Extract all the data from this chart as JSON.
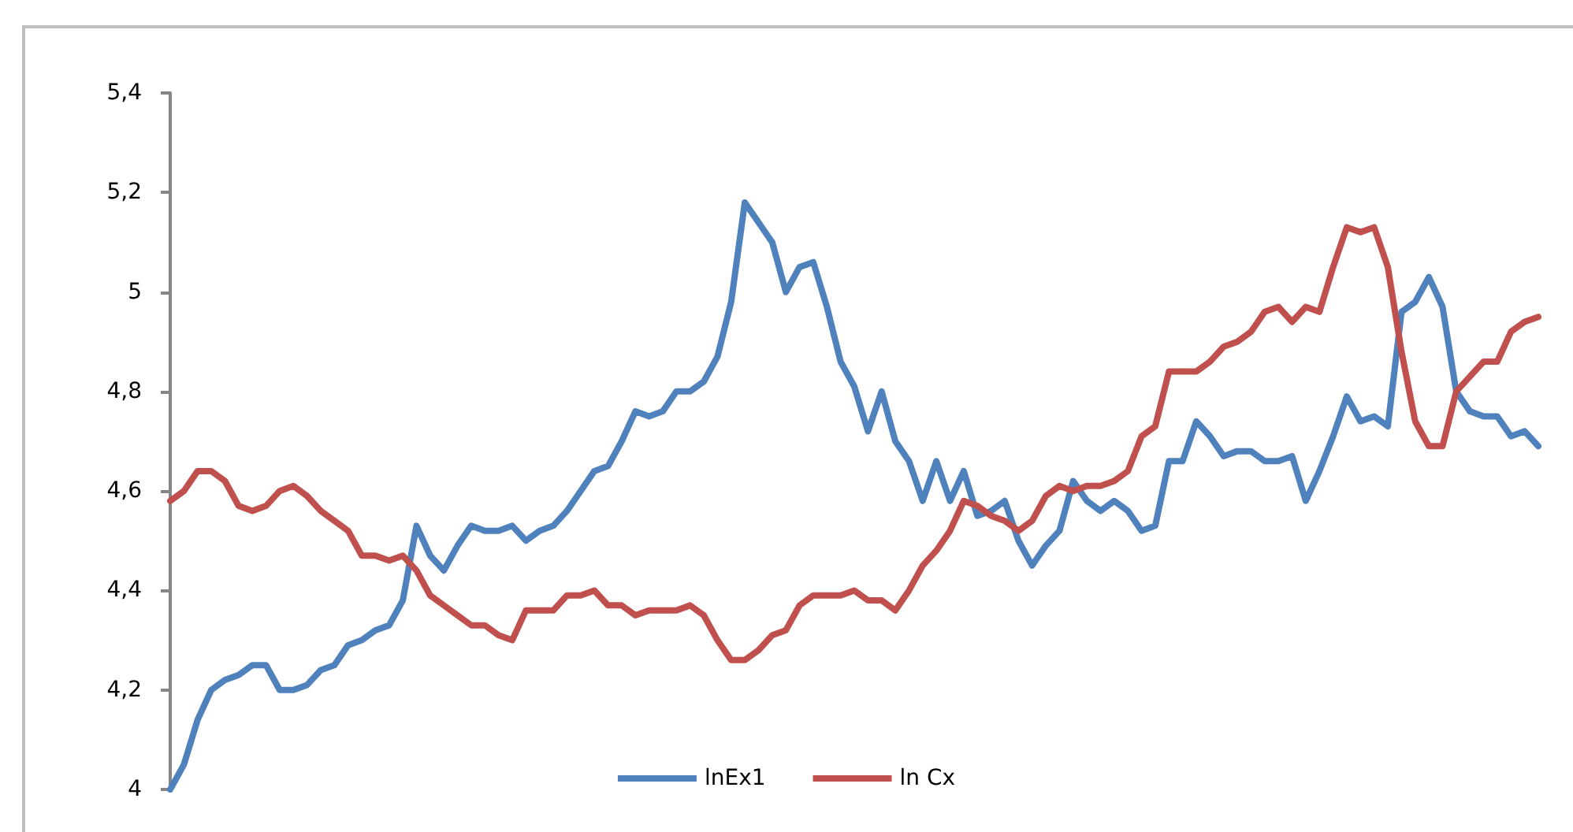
{
  "chart_data": {
    "type": "line",
    "categories": [
      null,
      null,
      null,
      null,
      null,
      null,
      null,
      null,
      null,
      null,
      null,
      null,
      null,
      null,
      null,
      null,
      null,
      null,
      null,
      null,
      null,
      null,
      null,
      null,
      null,
      null,
      null,
      null,
      null,
      null,
      null,
      null,
      null,
      null,
      null,
      null,
      null,
      null,
      null,
      null,
      null,
      null,
      null,
      null,
      null,
      null,
      null,
      null,
      null,
      null,
      null,
      null,
      null,
      null,
      null,
      null,
      null,
      null,
      null,
      null,
      null,
      null,
      null,
      null,
      null,
      null,
      null,
      null,
      null,
      null,
      null,
      null,
      null,
      null,
      null,
      null,
      null,
      null,
      null,
      null,
      null,
      null,
      null,
      null,
      null,
      null,
      null,
      null,
      null,
      null,
      null,
      null,
      null,
      null,
      null,
      null,
      null,
      null,
      null,
      null,
      null
    ],
    "series": [
      {
        "name": "lnEx1",
        "color": "#4f81bd",
        "values": [
          4.0,
          4.05,
          4.14,
          4.2,
          4.22,
          4.23,
          4.25,
          4.25,
          4.2,
          4.2,
          4.21,
          4.24,
          4.25,
          4.29,
          4.3,
          4.32,
          4.33,
          4.38,
          4.53,
          4.47,
          4.44,
          4.49,
          4.53,
          4.52,
          4.52,
          4.53,
          4.5,
          4.52,
          4.53,
          4.56,
          4.6,
          4.64,
          4.65,
          4.7,
          4.76,
          4.75,
          4.76,
          4.8,
          4.8,
          4.82,
          4.87,
          4.98,
          5.18,
          5.14,
          5.1,
          5.0,
          5.05,
          5.06,
          4.97,
          4.86,
          4.81,
          4.72,
          4.8,
          4.7,
          4.66,
          4.58,
          4.66,
          4.58,
          4.64,
          4.55,
          4.56,
          4.58,
          4.5,
          4.45,
          4.49,
          4.52,
          4.62,
          4.58,
          4.56,
          4.58,
          4.56,
          4.52,
          4.53,
          4.66,
          4.66,
          4.74,
          4.71,
          4.67,
          4.68,
          4.68,
          4.66,
          4.66,
          4.67,
          4.58,
          4.64,
          4.71,
          4.79,
          4.74,
          4.75,
          4.73,
          4.96,
          4.98,
          5.03,
          4.97,
          4.8,
          4.76,
          4.75,
          4.75,
          4.71,
          4.72,
          4.69
        ]
      },
      {
        "name": "ln Cx",
        "color": "#c0504d",
        "values": [
          4.58,
          4.6,
          4.64,
          4.64,
          4.62,
          4.57,
          4.56,
          4.57,
          4.6,
          4.61,
          4.59,
          4.56,
          4.54,
          4.52,
          4.47,
          4.47,
          4.46,
          4.47,
          4.44,
          4.39,
          4.37,
          4.35,
          4.33,
          4.33,
          4.31,
          4.3,
          4.36,
          4.36,
          4.36,
          4.39,
          4.39,
          4.4,
          4.37,
          4.37,
          4.35,
          4.36,
          4.36,
          4.36,
          4.37,
          4.35,
          4.3,
          4.26,
          4.26,
          4.28,
          4.31,
          4.32,
          4.37,
          4.39,
          4.39,
          4.39,
          4.4,
          4.38,
          4.38,
          4.36,
          4.4,
          4.45,
          4.48,
          4.52,
          4.58,
          4.57,
          4.55,
          4.54,
          4.52,
          4.54,
          4.59,
          4.61,
          4.6,
          4.61,
          4.61,
          4.62,
          4.64,
          4.71,
          4.73,
          4.84,
          4.84,
          4.84,
          4.86,
          4.89,
          4.9,
          4.92,
          4.96,
          4.97,
          4.94,
          4.97,
          4.96,
          5.05,
          5.13,
          5.12,
          5.13,
          5.05,
          4.88,
          4.74,
          4.69,
          4.69,
          4.8,
          4.83,
          4.86,
          4.86,
          4.92,
          4.94,
          4.95
        ]
      }
    ],
    "ylim": [
      4,
      5.4
    ],
    "yticks": [
      {
        "value": 4,
        "label": "4"
      },
      {
        "value": 4.2,
        "label": "4,2"
      },
      {
        "value": 4.4,
        "label": "4,4"
      },
      {
        "value": 4.6,
        "label": "4,6"
      },
      {
        "value": 4.8,
        "label": "4,8"
      },
      {
        "value": 5,
        "label": "5"
      },
      {
        "value": 5.2,
        "label": "5,2"
      },
      {
        "value": 5.4,
        "label": "5,4"
      }
    ],
    "tick_labels": "y",
    "grid": false,
    "legend": "bottom",
    "line_style": "solid"
  }
}
